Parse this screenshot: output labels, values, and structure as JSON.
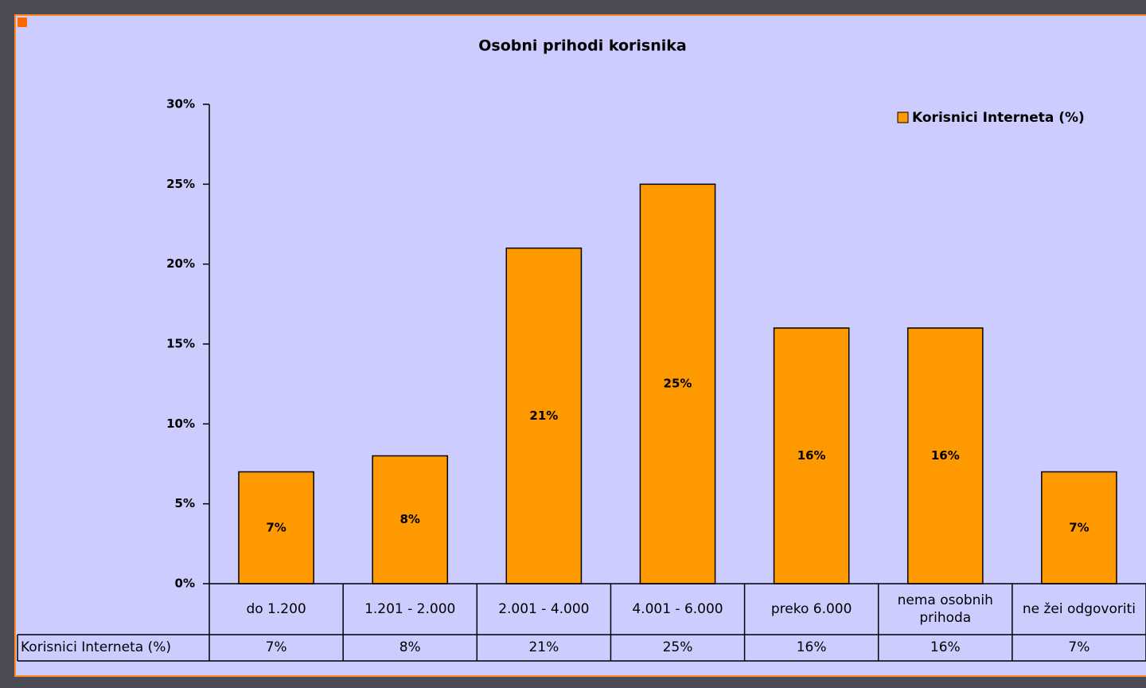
{
  "chart_data": {
    "type": "bar",
    "title": "Osobni prihodi  korisnika",
    "categories": [
      "do 1.200",
      "1.201 - 2.000",
      "2.001 - 4.000",
      "4.001 - 6.000",
      "preko 6.000",
      "nema osobnih prihoda",
      "ne žei odgovoriti"
    ],
    "series": [
      {
        "name": "Korisnici Interneta (%)",
        "color": "#ff9900",
        "values": [
          7,
          8,
          21,
          25,
          16,
          16,
          7
        ],
        "value_labels": [
          "7%",
          "8%",
          "21%",
          "25%",
          "16%",
          "16%",
          "7%"
        ]
      }
    ],
    "ylim": [
      0,
      30
    ],
    "yticks": [
      {
        "value": 0,
        "label": "0%"
      },
      {
        "value": 5,
        "label": "5%"
      },
      {
        "value": 10,
        "label": "10%"
      },
      {
        "value": 15,
        "label": "15%"
      },
      {
        "value": 20,
        "label": "20%"
      },
      {
        "value": 25,
        "label": "25%"
      },
      {
        "value": 30,
        "label": "30%"
      }
    ],
    "legend": "upper right"
  }
}
